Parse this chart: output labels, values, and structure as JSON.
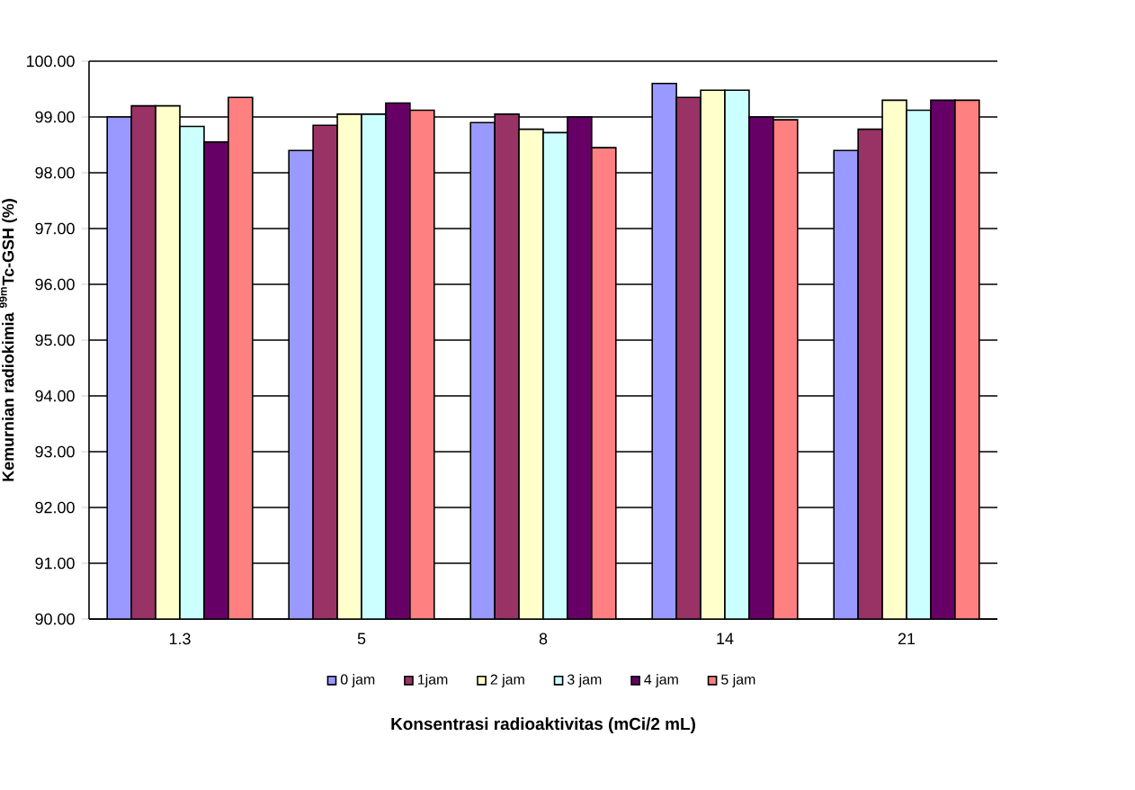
{
  "chart_data": {
    "type": "bar",
    "xlabel": "Konsentrasi radioaktivitas (mCi/2 mL)",
    "ylabel": "Kemurnian radiokimia $^{99m}$Tc-GSH (%)",
    "categories": [
      "1.3",
      "5",
      "8",
      "14",
      "21"
    ],
    "series": [
      {
        "name": "0 jam",
        "color": "#9999ff",
        "values": [
          99.0,
          98.4,
          98.9,
          99.6,
          98.4
        ]
      },
      {
        "name": "1jam",
        "color": "#993366",
        "values": [
          99.2,
          98.85,
          99.05,
          99.35,
          98.78
        ]
      },
      {
        "name": "2 jam",
        "color": "#ffffcc",
        "values": [
          99.2,
          99.05,
          98.78,
          99.48,
          99.3
        ]
      },
      {
        "name": "3 jam",
        "color": "#ccffff",
        "values": [
          98.83,
          99.05,
          98.72,
          99.48,
          99.12
        ]
      },
      {
        "name": "4 jam",
        "color": "#660066",
        "values": [
          98.55,
          99.25,
          99.0,
          99.0,
          99.3
        ]
      },
      {
        "name": "5 jam",
        "color": "#ff8080",
        "values": [
          99.35,
          99.12,
          98.45,
          98.95,
          99.3
        ]
      }
    ],
    "ylim": [
      90,
      100
    ],
    "yticks": [
      {
        "value": 90,
        "label": "90.00"
      },
      {
        "value": 91,
        "label": "91.00"
      },
      {
        "value": 92,
        "label": "92.00"
      },
      {
        "value": 93,
        "label": "93.00"
      },
      {
        "value": 94,
        "label": "94.00"
      },
      {
        "value": 95,
        "label": "95.00"
      },
      {
        "value": 96,
        "label": "96.00"
      },
      {
        "value": 97,
        "label": "97.00"
      },
      {
        "value": 98,
        "label": "98.00"
      },
      {
        "value": 99,
        "label": "99.00"
      },
      {
        "value": 100,
        "label": "100.00"
      }
    ],
    "grid": "y",
    "legend": "bottom"
  }
}
